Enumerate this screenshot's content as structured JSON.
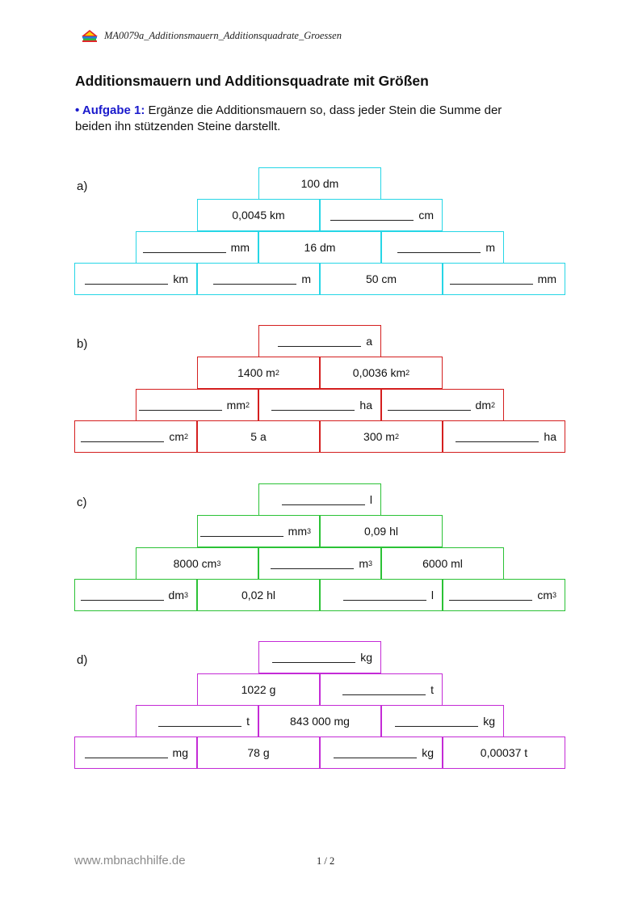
{
  "header": {
    "doc_id": "MA0079a_Additionsmauern_Additionsquadrate_Groessen",
    "logo_icon": "books-logo-icon"
  },
  "title": "Additionsmauern und Additionsquadrate mit Größen",
  "task": {
    "label": "• Aufgabe 1:",
    "line1": "Ergänze die Additionsmauern so, dass jeder Stein die Summe der",
    "line2": "beiden ihn stützenden Steine darstellt."
  },
  "walls": [
    {
      "label": "a)",
      "color": "#26d6e6",
      "rows": [
        [
          {
            "text": "100 dm"
          }
        ],
        [
          {
            "text": "0,0045 km"
          },
          {
            "blank": true,
            "unit": "cm"
          }
        ],
        [
          {
            "blank": true,
            "unit": "mm"
          },
          {
            "text": "16 dm"
          },
          {
            "blank": true,
            "unit": "m"
          }
        ],
        [
          {
            "blank": true,
            "unit": "km"
          },
          {
            "blank": true,
            "unit": "m"
          },
          {
            "text": "50 cm"
          },
          {
            "blank": true,
            "unit": "mm"
          }
        ]
      ]
    },
    {
      "label": "b)",
      "color": "#d41f1f",
      "rows": [
        [
          {
            "blank": true,
            "unit": "a"
          }
        ],
        [
          {
            "text": "1400 m",
            "sup": "2"
          },
          {
            "text": "0,0036 km",
            "sup": "2"
          }
        ],
        [
          {
            "blank": true,
            "unit": "mm",
            "sup": "2"
          },
          {
            "blank": true,
            "unit": "ha"
          },
          {
            "blank": true,
            "unit": "dm",
            "sup": "2"
          }
        ],
        [
          {
            "blank": true,
            "unit": "cm",
            "sup": "2"
          },
          {
            "text": "5 a"
          },
          {
            "text": "300 m",
            "sup": "2"
          },
          {
            "blank": true,
            "unit": "ha"
          }
        ]
      ]
    },
    {
      "label": "c)",
      "color": "#2bc236",
      "rows": [
        [
          {
            "blank": true,
            "unit": "l"
          }
        ],
        [
          {
            "blank": true,
            "unit": "mm",
            "sup": "3"
          },
          {
            "text": "0,09 hl"
          }
        ],
        [
          {
            "text": "8000 cm",
            "sup": "3"
          },
          {
            "blank": true,
            "unit": "m",
            "sup": "3"
          },
          {
            "text": "6000 ml"
          }
        ],
        [
          {
            "blank": true,
            "unit": "dm",
            "sup": "3"
          },
          {
            "text": "0,02 hl"
          },
          {
            "blank": true,
            "unit": "l"
          },
          {
            "blank": true,
            "unit": "cm",
            "sup": "3"
          }
        ]
      ]
    },
    {
      "label": "d)",
      "color": "#c42bd6",
      "rows": [
        [
          {
            "blank": true,
            "unit": "kg"
          }
        ],
        [
          {
            "text": "1022 g"
          },
          {
            "blank": true,
            "unit": "t"
          }
        ],
        [
          {
            "blank": true,
            "unit": "t"
          },
          {
            "text": "843 000 mg"
          },
          {
            "blank": true,
            "unit": "kg"
          }
        ],
        [
          {
            "blank": true,
            "unit": "mg"
          },
          {
            "text": "78 g"
          },
          {
            "blank": true,
            "unit": "kg"
          },
          {
            "text": "0,00037 t"
          }
        ]
      ]
    }
  ],
  "footer": {
    "url": "www.mbnachhilfe.de",
    "page": "1 / 2"
  }
}
